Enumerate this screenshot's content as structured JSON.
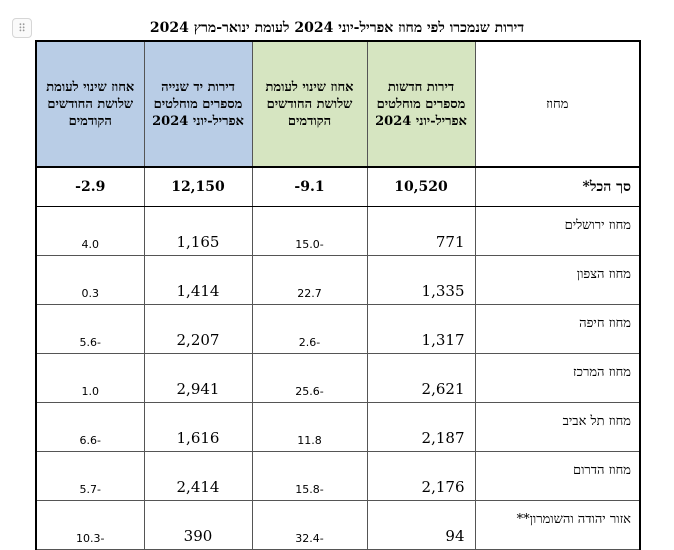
{
  "page": {
    "title": "דירות שנמכרו לפי מחוז אפריל-יוני  2024 לעומת ינואר-מרץ 2024",
    "drag_handle_glyph": "⠿"
  },
  "table": {
    "headers": {
      "district": "מחוז",
      "new_apartments": "דירות חדשות מספרים מוחלטים אפריל-יוני 2024",
      "new_change": "אחוז שינוי לעומת שלושת החודשים הקודמים",
      "used_apartments": "דירות יד שנייה מספרים מוחלטים אפריל-יוני 2024",
      "used_change": "אחוז שינוי לעומת שלושת החודשים הקודמים"
    },
    "total": {
      "district": "סך הכל*",
      "new_apartments": "10,520",
      "new_change": "-9.1",
      "used_apartments": "12,150",
      "used_change": "-2.9"
    },
    "rows": [
      {
        "district": "מחוז ירושלים",
        "new_apartments": "771",
        "new_change": "15.0-",
        "used_apartments": "1,165",
        "used_change": "4.0"
      },
      {
        "district": "מחוז הצפון",
        "new_apartments": "1,335",
        "new_change": "22.7",
        "used_apartments": "1,414",
        "used_change": "0.3"
      },
      {
        "district": "מחוז חיפה",
        "new_apartments": "1,317",
        "new_change": "2.6-",
        "used_apartments": "2,207",
        "used_change": "5.6-"
      },
      {
        "district": "מחוז המרכז",
        "new_apartments": "2,621",
        "new_change": "25.6-",
        "used_apartments": "2,941",
        "used_change": "1.0"
      },
      {
        "district": "מחוז תל אביב",
        "new_apartments": "2,187",
        "new_change": "11.8",
        "used_apartments": "1,616",
        "used_change": "6.6-"
      },
      {
        "district": "מחוז הדרום",
        "new_apartments": "2,176",
        "new_change": "15.8-",
        "used_apartments": "2,414",
        "used_change": "5.7-"
      },
      {
        "district": "אזור יהודה והשומרון**",
        "new_apartments": "94",
        "new_change": "32.4-",
        "used_apartments": "390",
        "used_change": "10.3-"
      }
    ]
  },
  "colors": {
    "used_header_bg": "#b9cde6",
    "new_header_bg": "#d6e5c1"
  }
}
